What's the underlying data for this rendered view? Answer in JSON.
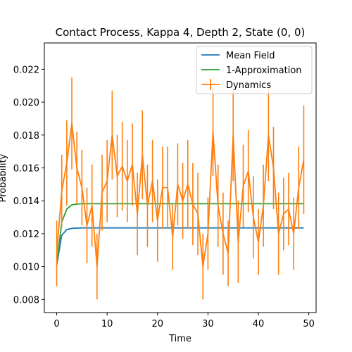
{
  "chart_data": {
    "type": "line",
    "title": "Contact Process, Kappa 4, Depth 2, State (0, 0)",
    "xlabel": "Time",
    "ylabel": "Probability",
    "xlim": [
      -2.45,
      51.45
    ],
    "ylim": [
      0.0072,
      0.0236
    ],
    "xticks": [
      0,
      10,
      20,
      30,
      40,
      50
    ],
    "xtick_labels": [
      "0",
      "10",
      "20",
      "30",
      "40",
      "50"
    ],
    "yticks": [
      0.008,
      0.01,
      0.012,
      0.014,
      0.016,
      0.018,
      0.02,
      0.022
    ],
    "ytick_labels": [
      "0.008",
      "0.010",
      "0.012",
      "0.014",
      "0.016",
      "0.018",
      "0.020",
      "0.022"
    ],
    "grid": false,
    "legend_position": "top-right",
    "colors": {
      "mean_field": "#1f77b4",
      "one_approximation": "#2ca02c",
      "dynamics": "#ff7f0e"
    },
    "series": [
      {
        "name": "Mean Field",
        "kind": "line",
        "x": [
          0,
          1,
          2,
          3,
          4,
          5,
          6,
          7,
          8,
          9,
          10,
          11,
          12,
          13,
          14,
          15,
          16,
          17,
          18,
          19,
          20,
          21,
          22,
          23,
          24,
          25,
          26,
          27,
          28,
          29,
          30,
          31,
          32,
          33,
          34,
          35,
          36,
          37,
          38,
          39,
          40,
          41,
          42,
          43,
          44,
          45,
          46,
          47,
          48,
          49
        ],
        "y": [
          0.0101,
          0.0119,
          0.01225,
          0.01232,
          0.01234,
          0.01235,
          0.01235,
          0.01235,
          0.01235,
          0.01235,
          0.01235,
          0.01235,
          0.01235,
          0.01235,
          0.01235,
          0.01235,
          0.01235,
          0.01235,
          0.01235,
          0.01235,
          0.01235,
          0.01235,
          0.01235,
          0.01235,
          0.01235,
          0.01235,
          0.01235,
          0.01235,
          0.01235,
          0.01235,
          0.01235,
          0.01235,
          0.01235,
          0.01235,
          0.01235,
          0.01235,
          0.01235,
          0.01235,
          0.01235,
          0.01235,
          0.01235,
          0.01235,
          0.01235,
          0.01235,
          0.01235,
          0.01235,
          0.01235,
          0.01235,
          0.01235,
          0.01235
        ]
      },
      {
        "name": "1-Approximation",
        "kind": "line",
        "x": [
          0,
          1,
          2,
          3,
          4,
          5,
          6,
          7,
          8,
          9,
          10,
          11,
          12,
          13,
          14,
          15,
          16,
          17,
          18,
          19,
          20,
          21,
          22,
          23,
          24,
          25,
          26,
          27,
          28,
          29,
          30,
          31,
          32,
          33,
          34,
          35,
          36,
          37,
          38,
          39,
          40,
          41,
          42,
          43,
          44,
          45,
          46,
          47,
          48,
          49
        ],
        "y": [
          0.0101,
          0.0127,
          0.0135,
          0.01375,
          0.0138,
          0.01382,
          0.01382,
          0.01382,
          0.01382,
          0.01382,
          0.01382,
          0.01382,
          0.01382,
          0.01382,
          0.01382,
          0.01382,
          0.01382,
          0.01382,
          0.01382,
          0.01382,
          0.01382,
          0.01382,
          0.01382,
          0.01382,
          0.01382,
          0.01382,
          0.01382,
          0.01382,
          0.01382,
          0.01382,
          0.01382,
          0.01382,
          0.01382,
          0.01382,
          0.01382,
          0.01382,
          0.01382,
          0.01382,
          0.01382,
          0.01382,
          0.01382,
          0.01382,
          0.01382,
          0.01382,
          0.01382,
          0.01382,
          0.01382,
          0.01382,
          0.01382,
          0.01382
        ]
      },
      {
        "name": "Dynamics",
        "kind": "errorbar",
        "x": [
          0,
          1,
          2,
          3,
          4,
          5,
          6,
          7,
          8,
          9,
          10,
          11,
          12,
          13,
          14,
          15,
          16,
          17,
          18,
          19,
          20,
          21,
          22,
          23,
          24,
          25,
          26,
          27,
          28,
          29,
          30,
          31,
          32,
          33,
          34,
          35,
          36,
          37,
          38,
          39,
          40,
          41,
          42,
          43,
          44,
          45,
          46,
          47,
          48,
          49
        ],
        "y": [
          0.0108,
          0.0146,
          0.0163,
          0.0187,
          0.016,
          0.0148,
          0.0125,
          0.0137,
          0.01,
          0.0145,
          0.0152,
          0.018,
          0.0155,
          0.0161,
          0.0152,
          0.0162,
          0.0132,
          0.0168,
          0.0137,
          0.0152,
          0.0128,
          0.0148,
          0.0148,
          0.0118,
          0.015,
          0.014,
          0.015,
          0.0138,
          0.0132,
          0.01,
          0.012,
          0.0182,
          0.0137,
          0.012,
          0.0108,
          0.018,
          0.0115,
          0.0149,
          0.0158,
          0.013,
          0.0115,
          0.0137,
          0.018,
          0.016,
          0.012,
          0.0132,
          0.0135,
          0.012,
          0.0148,
          0.0165
        ],
        "yerr": [
          0.002,
          0.0022,
          0.0026,
          0.0028,
          0.0022,
          0.0023,
          0.0023,
          0.0025,
          0.002,
          0.0023,
          0.0025,
          0.0027,
          0.0025,
          0.0027,
          0.0025,
          0.0025,
          0.0025,
          0.0027,
          0.0025,
          0.0025,
          0.0025,
          0.0025,
          0.0025,
          0.002,
          0.0025,
          0.0023,
          0.0027,
          0.0025,
          0.0025,
          0.002,
          0.0022,
          0.0027,
          0.0025,
          0.0025,
          0.002,
          0.0028,
          0.0025,
          0.0025,
          0.0025,
          0.0025,
          0.002,
          0.0025,
          0.0028,
          0.0025,
          0.0025,
          0.0022,
          0.0022,
          0.0022,
          0.0025,
          0.0033
        ]
      }
    ]
  }
}
